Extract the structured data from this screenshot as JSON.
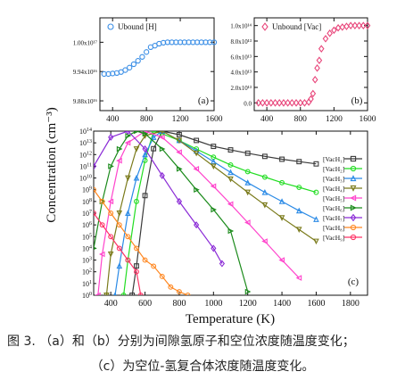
{
  "figure": {
    "ylabel": "Concentration (cm⁻³)",
    "caption_line1": "图 3. （a）和（b）分别为间隙氢原子和空位浓度随温度变化；",
    "caption_line2": "（c）为空位-氢复合体浓度随温度变化。"
  },
  "chart_data": [
    {
      "type": "scatter",
      "panel_label": "(a)",
      "xlim": [
        250,
        1600
      ],
      "ylim": [
        9.86e+16,
        1.005e+17
      ],
      "x_ticks": [
        400,
        800,
        1200,
        1600
      ],
      "x_tick_labels": [
        "400",
        "800",
        "1200",
        "1600"
      ],
      "y_ticks": [
        9.88e+16,
        9.94e+16,
        1e+17
      ],
      "y_tick_labels": [
        "9.88x10¹⁶",
        "9.94x10¹⁶",
        "1.00x10¹⁷"
      ],
      "legend_position": "top-left",
      "color": "#3a8ee6",
      "series": [
        {
          "name": "Ubound [H]",
          "marker": "circle",
          "x": [
            300,
            350,
            400,
            450,
            500,
            550,
            600,
            650,
            700,
            750,
            800,
            850,
            900,
            950,
            1000,
            1050,
            1100,
            1150,
            1200,
            1250,
            1300,
            1350,
            1400,
            1450,
            1500,
            1550,
            1600
          ],
          "y": [
            9.935e+16,
            9.935e+16,
            9.936e+16,
            9.937e+16,
            9.939e+16,
            9.943e+16,
            9.948e+16,
            9.955e+16,
            9.962e+16,
            9.97e+16,
            9.98e+16,
            9.99e+16,
            9.993e+16,
            9.997e+16,
            9.999e+16,
            1e+17,
            1e+17,
            1e+17,
            1e+17,
            1e+17,
            1e+17,
            1e+17,
            1e+17,
            1e+17,
            1e+17,
            1e+17,
            1e+17
          ]
        }
      ]
    },
    {
      "type": "scatter",
      "panel_label": "(b)",
      "xlim": [
        250,
        1600
      ],
      "ylim": [
        -10000000000000.0,
        110000000000000.0
      ],
      "x_ticks": [
        400,
        800,
        1200,
        1600
      ],
      "x_tick_labels": [
        "400",
        "800",
        "1200",
        "1600"
      ],
      "y_ticks": [
        0,
        20000000000000.0,
        40000000000000.0,
        60000000000000.0,
        80000000000000.0,
        100000000000000.0
      ],
      "y_tick_labels": [
        "0.0",
        "2.0x10¹³",
        "4.0x10¹³",
        "6.0x10¹³",
        "8.0x10¹³",
        "1.0x10¹⁴"
      ],
      "legend_position": "top-left",
      "color": "#e8457a",
      "series": [
        {
          "name": "Unbound [Vac]",
          "marker": "diamond",
          "x": [
            300,
            350,
            400,
            450,
            500,
            550,
            600,
            650,
            700,
            750,
            800,
            850,
            900,
            925,
            950,
            975,
            1000,
            1025,
            1050,
            1100,
            1150,
            1200,
            1250,
            1300,
            1350,
            1400,
            1450,
            1500,
            1550,
            1600
          ],
          "y": [
            0,
            0,
            0,
            0,
            0,
            0,
            0,
            0,
            0,
            0,
            0,
            0,
            1000000000000.0,
            5000000000000.0,
            12000000000000.0,
            30000000000000.0,
            45000000000000.0,
            55000000000000.0,
            70000000000000.0,
            83000000000000.0,
            90000000000000.0,
            94000000000000.0,
            97000000000000.0,
            98000000000000.0,
            99000000000000.0,
            100000000000000.0,
            100000000000000.0,
            100000000000000.0,
            100000000000000.0,
            100000000000000.0
          ]
        }
      ]
    },
    {
      "type": "line",
      "panel_label": "(c)",
      "yscale": "log",
      "xlabel": "Temperature (K)",
      "xlim": [
        300,
        1900
      ],
      "ylim": [
        1,
        100000000000000.0
      ],
      "x_ticks": [
        400,
        600,
        800,
        1000,
        1200,
        1400,
        1600,
        1800
      ],
      "x_tick_labels": [
        "400",
        "600",
        "800",
        "1000",
        "1200",
        "1400",
        "1600",
        "1800"
      ],
      "y_tick_exponents": [
        0,
        1,
        2,
        3,
        4,
        5,
        6,
        7,
        8,
        9,
        10,
        11,
        12,
        13,
        14
      ],
      "legend_position": "right",
      "series": [
        {
          "name": "[VacH₁]",
          "color": "#3a3a3a",
          "marker": "square",
          "x": [
            525,
            550,
            600,
            650,
            700,
            800,
            900,
            1000,
            1100,
            1200,
            1300,
            1400,
            1500,
            1600
          ],
          "y": [
            1,
            316.0,
            316000000.0,
            3160000000000.0,
            100000000000000.0,
            50000000000000.0,
            16000000000000.0,
            5000000000000.0,
            2500000000000.0,
            1300000000000.0,
            700000000000.0,
            400000000000.0,
            250000000000.0,
            160000000000.0
          ]
        },
        {
          "name": "[VacH₂]",
          "color": "#22dd22",
          "marker": "circle",
          "x": [
            475,
            500,
            550,
            600,
            650,
            700,
            800,
            900,
            1000,
            1100,
            1200,
            1300,
            1400,
            1500,
            1600
          ],
          "y": [
            1,
            1000.0,
            100000000.0,
            316000000000.0,
            100000000000000.0,
            60000000000000.0,
            16000000000000.0,
            3000000000000.0,
            600000000000.0,
            130000000000.0,
            35000000000.0,
            12000000000.0,
            4000000000.0,
            1600000000.0,
            600000000.0
          ]
        },
        {
          "name": "[VacH₃]",
          "color": "#2a8ae6",
          "marker": "triangle-up",
          "x": [
            425,
            450,
            500,
            550,
            600,
            650,
            700,
            800,
            900,
            1000,
            1100,
            1200,
            1300,
            1400,
            1500,
            1600
          ],
          "y": [
            1,
            316.0,
            10000000.0,
            10000000000.0,
            1000000000000.0,
            30000000000000.0,
            100000000000000.0,
            16000000000000.0,
            2000000000000.0,
            250000000000.0,
            30000000000.0,
            4000000000.0,
            600000000.0,
            100000000.0,
            16000000.0,
            3000000.0
          ]
        },
        {
          "name": "[VacH₄]",
          "color": "#7a7a1a",
          "marker": "triangle-down",
          "x": [
            375,
            400,
            450,
            500,
            550,
            600,
            700,
            800,
            900,
            1000,
            1100,
            1200,
            1300,
            1400,
            1500,
            1600
          ],
          "y": [
            1,
            3160.0,
            10000000.0,
            10000000000.0,
            3000000000000.0,
            40000000000000.0,
            100000000000000.0,
            16000000000000.0,
            1300000000000.0,
            100000000000.0,
            8000000000.0,
            600000000.0,
            50000000.0,
            4000000.0,
            400000.0,
            40000.0
          ]
        },
        {
          "name": "[VacH₅]",
          "color": "#ff44cc",
          "marker": "triangle-left",
          "x": [
            325,
            350,
            400,
            450,
            500,
            600,
            700,
            800,
            900,
            1000,
            1100,
            1200,
            1300,
            1400,
            1500
          ],
          "y": [
            1,
            3160.0,
            100000000.0,
            300000000000.0,
            10000000000000.0,
            100000000000000.0,
            30000000000000.0,
            1600000000000.0,
            60000000000.0,
            2000000000.0,
            60000000.0,
            1600000.0,
            40000.0,
            1000.0,
            30.0
          ]
        },
        {
          "name": "[VacH₆]",
          "color": "#1a8a1a",
          "marker": "triangle-right",
          "x": [
            300,
            350,
            400,
            450,
            500,
            550,
            600,
            700,
            800,
            900,
            1000,
            1100,
            1200
          ],
          "y": [
            10000.0,
            100000000.0,
            100000000000.0,
            3000000000000.0,
            40000000000000.0,
            100000000000000.0,
            60000000000000.0,
            3000000000000.0,
            60000000000.0,
            1000000000.0,
            20000000.0,
            300000.0,
            2
          ]
        },
        {
          "name": "[VacH₇]",
          "color": "#8a2ad6",
          "marker": "diamond",
          "x": [
            300,
            400,
            500,
            600,
            700,
            800,
            900,
            1000,
            1050
          ],
          "y": [
            100000000000.0,
            30000000000000.0,
            100000000000000.0,
            3000000000000.0,
            16000000000.0,
            100000000.0,
            1000000.0,
            10000.0,
            500.0
          ]
        },
        {
          "name": "[VacH₈]",
          "color": "#ff8822",
          "marker": "circle",
          "x": [
            300,
            350,
            400,
            450,
            500,
            550,
            600,
            650,
            700,
            750,
            800,
            850
          ],
          "y": [
            1000000000.0,
            100000000.0,
            10000000.0,
            1000000.0,
            100000.0,
            10000.0,
            1000.0,
            300.0,
            40.0,
            5,
            2,
            1
          ]
        },
        {
          "name": "[VacH₉]",
          "color": "#ff3366",
          "marker": "circle",
          "x": [
            300,
            350,
            400,
            450,
            500,
            550,
            575
          ],
          "y": [
            10000000.0,
            1000000.0,
            100000.0,
            10000.0,
            1000.0,
            100.0,
            1
          ]
        }
      ]
    }
  ]
}
